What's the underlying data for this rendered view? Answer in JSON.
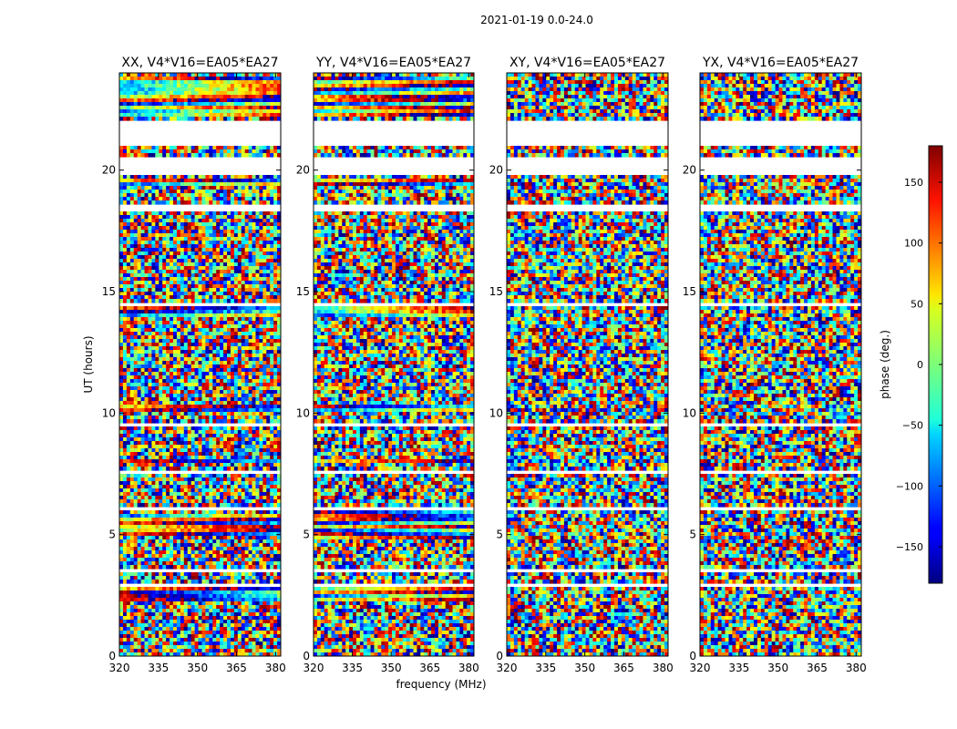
{
  "chart_data": {
    "type": "heatmap",
    "suptitle": "2021-01-19 0.0-24.0",
    "xlabel": "frequency (MHz)",
    "ylabel": "UT (hours)",
    "xlim": [
      320,
      382
    ],
    "ylim": [
      0,
      24
    ],
    "xticks": [
      320,
      335,
      350,
      365,
      380
    ],
    "yticks": [
      0,
      5,
      10,
      15,
      20
    ],
    "panels": [
      {
        "title": "XX, V4*V16=EA05*EA27",
        "coherent_bands": [
          [
            2.2,
            2.8
          ],
          [
            5.0,
            5.8
          ],
          [
            7.9,
            8.1
          ],
          [
            10.0,
            10.3
          ],
          [
            14.0,
            14.4
          ],
          [
            19.4,
            19.7
          ],
          [
            22.2,
            23.9
          ]
        ]
      },
      {
        "title": "YY, V4*V16=EA05*EA27",
        "coherent_bands": [
          [
            2.2,
            2.8
          ],
          [
            4.8,
            6.0
          ],
          [
            7.9,
            8.1
          ],
          [
            10.0,
            10.3
          ],
          [
            14.0,
            14.4
          ],
          [
            19.4,
            19.7
          ],
          [
            22.2,
            23.9
          ]
        ]
      },
      {
        "title": "XY, V4*V16=EA05*EA27",
        "coherent_bands": []
      },
      {
        "title": "YX, V4*V16=EA05*EA27",
        "coherent_bands": []
      }
    ],
    "flagged_bands": [
      [
        0.0,
        0.05
      ],
      [
        0.12,
        0.15
      ],
      [
        2.85,
        3.0
      ],
      [
        3.4,
        3.6
      ],
      [
        6.0,
        6.1
      ],
      [
        7.5,
        7.6
      ],
      [
        8.2,
        8.3
      ],
      [
        9.5,
        9.6
      ],
      [
        10.3,
        10.4
      ],
      [
        12.4,
        12.5
      ],
      [
        14.4,
        14.5
      ],
      [
        17.2,
        17.3
      ],
      [
        18.3,
        18.6
      ],
      [
        19.0,
        19.1
      ],
      [
        19.75,
        20.6
      ],
      [
        21.0,
        22.1
      ]
    ],
    "colorbar": {
      "label": "phase (deg.)",
      "range": [
        -180,
        180
      ],
      "ticks": [
        -150,
        -100,
        -50,
        0,
        50,
        100,
        150
      ],
      "colormap": "jet"
    }
  }
}
